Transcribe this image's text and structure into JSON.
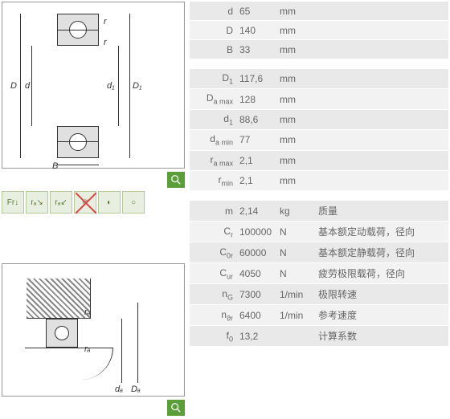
{
  "diagram1": {
    "labels": {
      "D": "D",
      "d": "d",
      "d1": "d₁",
      "D1": "D₁",
      "B": "B",
      "r1": "r",
      "r2": "r"
    }
  },
  "diagram2": {
    "labels": {
      "ra1": "rₐ",
      "ra2": "rₐ",
      "da": "dₐ",
      "Da": "Dₐ"
    }
  },
  "icons": [
    "Fr↓",
    "rₐ↘",
    "rₐ↙",
    "※",
    "◐",
    "○"
  ],
  "group1": [
    {
      "sym": "d",
      "val": "65",
      "unit": "mm"
    },
    {
      "sym": "D",
      "val": "140",
      "unit": "mm"
    },
    {
      "sym": "B",
      "val": "33",
      "unit": "mm"
    }
  ],
  "group2": [
    {
      "sym": "D<sub>1</sub>",
      "val": "117,6",
      "unit": "mm"
    },
    {
      "sym": "D<sub>a max</sub>",
      "val": "128",
      "unit": "mm"
    },
    {
      "sym": "d<sub>1</sub>",
      "val": "88,6",
      "unit": "mm"
    },
    {
      "sym": "d<sub>a min</sub>",
      "val": "77",
      "unit": "mm"
    },
    {
      "sym": "r<sub>a max</sub>",
      "val": "2,1",
      "unit": "mm"
    },
    {
      "sym": "r<sub>min</sub>",
      "val": "2,1",
      "unit": "mm"
    }
  ],
  "group3": [
    {
      "sym": "m",
      "val": "2,14",
      "unit": "kg",
      "desc": "质量"
    },
    {
      "sym": "C<sub>r</sub>",
      "val": "100000",
      "unit": "N",
      "desc": "基本额定动载荷，径向"
    },
    {
      "sym": "C<sub>0r</sub>",
      "val": "60000",
      "unit": "N",
      "desc": "基本额定静载荷，径向"
    },
    {
      "sym": "C<sub>ur</sub>",
      "val": "4050",
      "unit": "N",
      "desc": "疲劳极限载荷，径向"
    },
    {
      "sym": "n<sub>G</sub>",
      "val": "7300",
      "unit": "1/min",
      "desc": "极限转速"
    },
    {
      "sym": "n<sub>ϑr</sub>",
      "val": "6400",
      "unit": "1/min",
      "desc": "参考速度"
    },
    {
      "sym": "f<sub>0</sub>",
      "val": "13,2",
      "unit": "",
      "desc": "计算系数"
    }
  ],
  "colors": {
    "row_bg": "#e9e9e9",
    "row_alt": "#f2f2f2",
    "zoom": "#5a9e3a",
    "icon_bg": "#e8efe0",
    "icon_border": "#b5c99a",
    "text": "#666666"
  }
}
